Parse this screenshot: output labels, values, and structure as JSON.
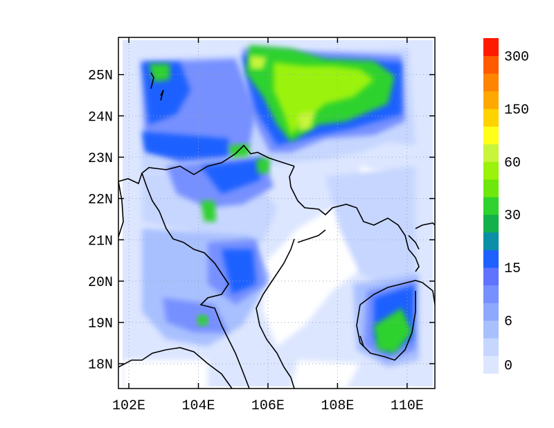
{
  "map": {
    "lon_ticks": [
      "102E",
      "104E",
      "106E",
      "108E",
      "110E"
    ],
    "lat_ticks": [
      "18N",
      "19N",
      "20N",
      "21N",
      "22N",
      "23N",
      "24N",
      "25N"
    ],
    "lon_range": [
      101.7,
      110.8
    ],
    "lat_range": [
      17.4,
      25.9
    ],
    "gridlines": "dotted"
  },
  "colorbar": {
    "labels": [
      "0",
      "6",
      "15",
      "30",
      "60",
      "150",
      "300"
    ],
    "colors": [
      "#dce6ff",
      "#c6d6ff",
      "#a9c0ff",
      "#8ea8ff",
      "#7790ff",
      "#5f73ff",
      "#1f61ff",
      "#0b8fa6",
      "#14b04b",
      "#2fd22f",
      "#6ee80c",
      "#9bf20a",
      "#c8f43c",
      "#ffff1a",
      "#ffd200",
      "#ffa800",
      "#ff8400",
      "#ff5a00",
      "#ff1a00"
    ]
  }
}
